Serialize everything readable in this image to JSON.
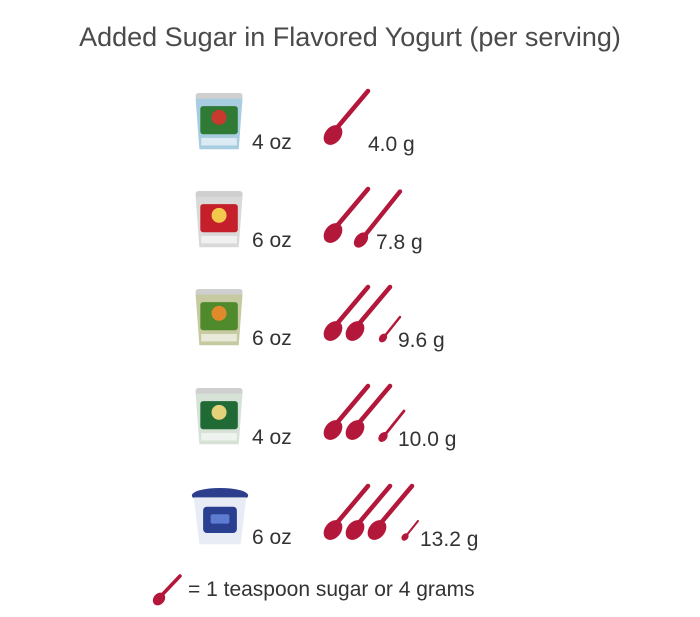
{
  "title": "Added Sugar in Flavored Yogurt (per serving)",
  "legend_text": "= 1 teaspoon sugar or 4 grams",
  "colors": {
    "spoon": "#b3173a"
  },
  "chart_data": {
    "type": "pictogram",
    "title": "Added Sugar in Flavored Yogurt (per serving)",
    "unit_per_icon": 4,
    "unit": "g",
    "items": [
      {
        "size": "4 oz",
        "grams": 4.0,
        "grams_label": "4.0 g",
        "cup": {
          "body": "#a8cde0",
          "label": "#2f7a35",
          "accent": "#c8392e"
        }
      },
      {
        "size": "6 oz",
        "grams": 7.8,
        "grams_label": "7.8 g",
        "cup": {
          "body": "#d9d9d9",
          "label": "#c51f2b",
          "accent": "#f2c94c"
        }
      },
      {
        "size": "6 oz",
        "grams": 9.6,
        "grams_label": "9.6 g",
        "cup": {
          "body": "#c7c9a0",
          "label": "#4f8a2d",
          "accent": "#e08a2c"
        }
      },
      {
        "size": "4 oz",
        "grams": 10.0,
        "grams_label": "10.0 g",
        "cup": {
          "body": "#d7e2d7",
          "label": "#1f6a35",
          "accent": "#e3d27a"
        }
      },
      {
        "size": "6 oz",
        "grams": 13.2,
        "grams_label": "13.2 g",
        "cup": {
          "body": "#e8ecf5",
          "label": "#2a3f8f",
          "accent": "#5c7bd1"
        }
      }
    ]
  }
}
